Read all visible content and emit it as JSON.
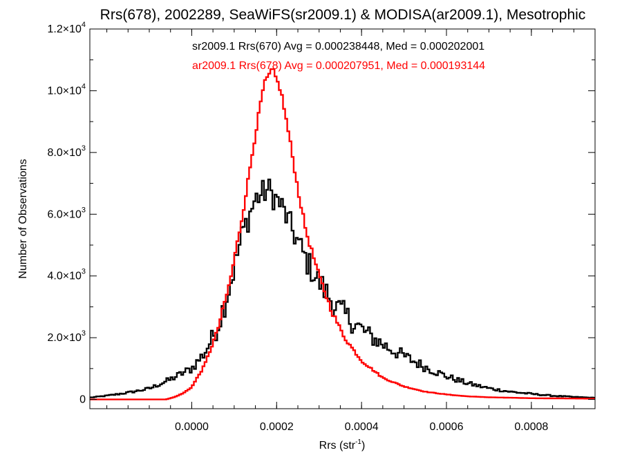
{
  "chart_data": {
    "type": "line",
    "title": "Rrs(678), 2002289, SeaWiFS(sr2009.1) & MODISA(ar2009.1), Mesotrophic",
    "xlabel_main": "Rrs (str",
    "xlabel_sup": "-1",
    "xlabel_close": ")",
    "ylabel": "Number of Observations",
    "xlim": [
      -0.00024,
      0.00095
    ],
    "ylim": [
      -300,
      12000
    ],
    "x_ticks": [
      {
        "value": 0.0,
        "label": "0.0000"
      },
      {
        "value": 0.0002,
        "label": "0.0002"
      },
      {
        "value": 0.0004,
        "label": "0.0004"
      },
      {
        "value": 0.0006,
        "label": "0.0006"
      },
      {
        "value": 0.0008,
        "label": "0.0008"
      }
    ],
    "y_ticks": [
      {
        "value": 0,
        "mant": "0",
        "exp": ""
      },
      {
        "value": 2000,
        "mant": "2.0×10",
        "exp": "3"
      },
      {
        "value": 4000,
        "mant": "4.0×10",
        "exp": "3"
      },
      {
        "value": 6000,
        "mant": "6.0×10",
        "exp": "3"
      },
      {
        "value": 8000,
        "mant": "8.0×10",
        "exp": "3"
      },
      {
        "value": 10000,
        "mant": "1.0×10",
        "exp": "4"
      },
      {
        "value": 12000,
        "mant": "1.2×10",
        "exp": "4"
      }
    ],
    "bin_width": 5e-06,
    "annotations": [
      {
        "text": "sr2009.1 Rrs(670) Avg = 0.000238448, Med = 0.000202001",
        "color": "#000000"
      },
      {
        "text": "ar2009.1 Rrs(678) Avg = 0.000207951, Med = 0.000193144",
        "color": "#ff0000"
      }
    ],
    "series": [
      {
        "color": "#000000",
        "noise": 450,
        "points": [
          [
            -0.00024,
            60
          ],
          [
            -0.0002,
            120
          ],
          [
            -0.00015,
            220
          ],
          [
            -0.0001,
            350
          ],
          [
            -5e-05,
            650
          ],
          [
            0.0,
            1000
          ],
          [
            3e-05,
            1500
          ],
          [
            6e-05,
            2300
          ],
          [
            9e-05,
            3700
          ],
          [
            0.00012,
            5400
          ],
          [
            0.00015,
            6500
          ],
          [
            0.00018,
            6800
          ],
          [
            0.00021,
            6300
          ],
          [
            0.00024,
            5400
          ],
          [
            0.00027,
            4500
          ],
          [
            0.0003,
            3800
          ],
          [
            0.00034,
            3000
          ],
          [
            0.00038,
            2500
          ],
          [
            0.00042,
            2050
          ],
          [
            0.00046,
            1700
          ],
          [
            0.0005,
            1400
          ],
          [
            0.00055,
            1050
          ],
          [
            0.0006,
            750
          ],
          [
            0.00065,
            520
          ],
          [
            0.0007,
            360
          ],
          [
            0.00075,
            250
          ],
          [
            0.0008,
            180
          ],
          [
            0.00085,
            120
          ],
          [
            0.0009,
            80
          ],
          [
            0.00095,
            50
          ]
        ]
      },
      {
        "color": "#ff0000",
        "noise": 90,
        "points": [
          [
            -0.00024,
            0
          ],
          [
            -6e-05,
            0
          ],
          [
            -4e-05,
            80
          ],
          [
            -2e-05,
            200
          ],
          [
            0.0,
            400
          ],
          [
            3e-05,
            1100
          ],
          [
            6e-05,
            2200
          ],
          [
            9e-05,
            3800
          ],
          [
            0.00012,
            6000
          ],
          [
            0.00015,
            8600
          ],
          [
            0.00017,
            10200
          ],
          [
            0.00019,
            10700
          ],
          [
            0.00021,
            10000
          ],
          [
            0.00023,
            8500
          ],
          [
            0.00025,
            6800
          ],
          [
            0.00027,
            5400
          ],
          [
            0.0003,
            4000
          ],
          [
            0.00033,
            2850
          ],
          [
            0.00036,
            2000
          ],
          [
            0.0004,
            1250
          ],
          [
            0.00045,
            700
          ],
          [
            0.0005,
            420
          ],
          [
            0.00055,
            250
          ],
          [
            0.0006,
            160
          ],
          [
            0.00065,
            100
          ],
          [
            0.0007,
            70
          ],
          [
            0.0008,
            40
          ],
          [
            0.00095,
            25
          ]
        ]
      }
    ]
  }
}
